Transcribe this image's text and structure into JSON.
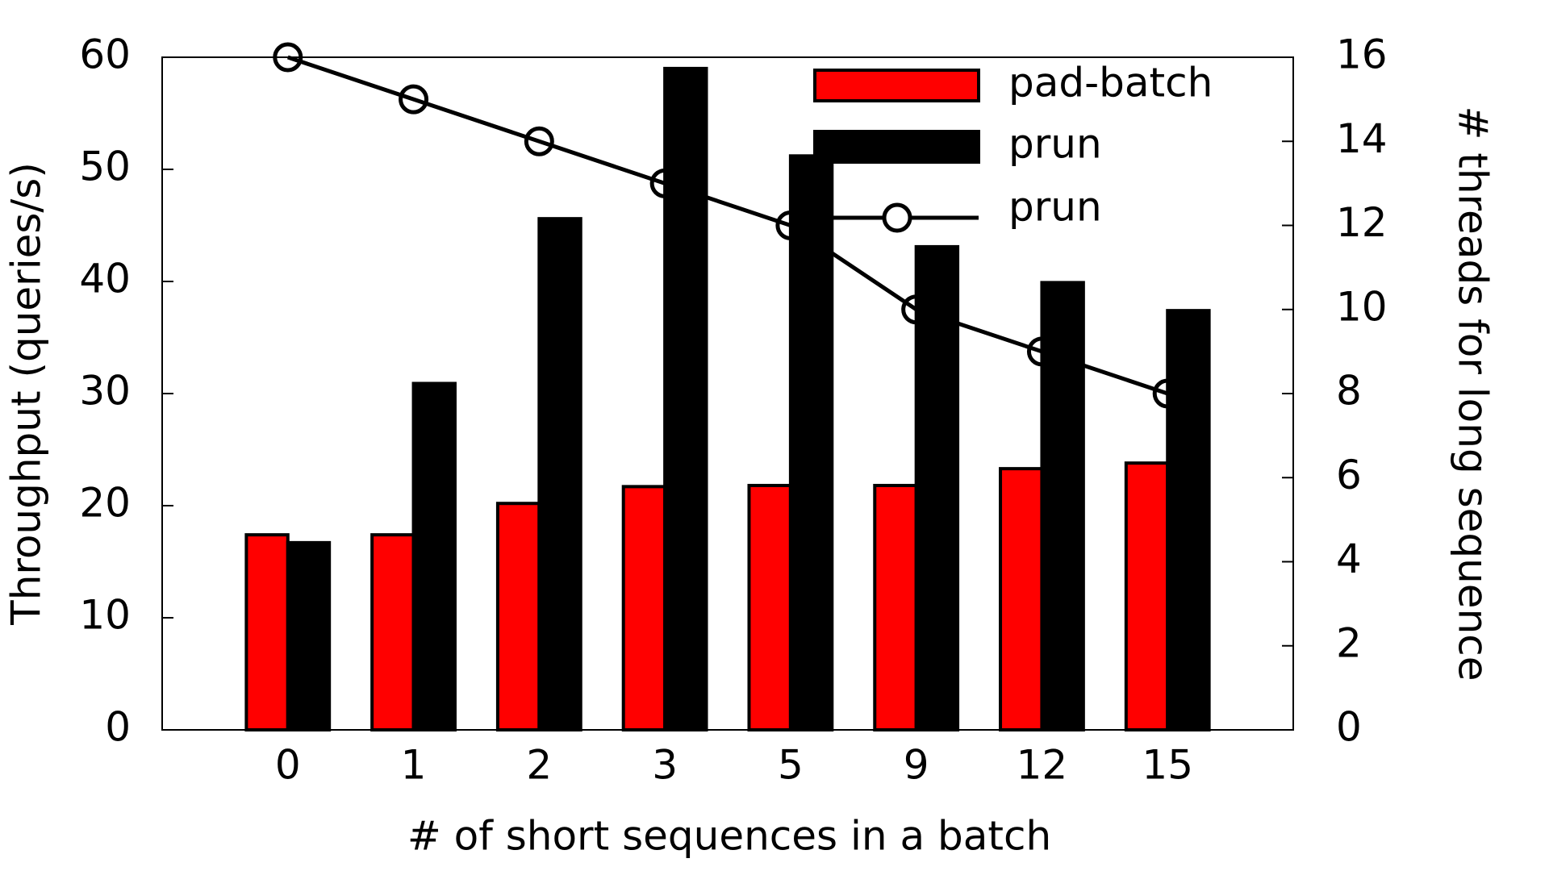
{
  "chart_data": {
    "type": "bar",
    "xlabel": "# of short sequences in a batch",
    "ylabel": "Throughput (queries/s)",
    "y2label": "# threads for long sequence",
    "categories": [
      "0",
      "1",
      "2",
      "3",
      "5",
      "9",
      "12",
      "15"
    ],
    "series": [
      {
        "name": "pad-batch",
        "type": "bar",
        "color": "#ff0000",
        "values": [
          17.4,
          17.4,
          20.2,
          21.7,
          21.8,
          21.8,
          23.3,
          23.8
        ]
      },
      {
        "name": "prun",
        "type": "bar",
        "color": "#000000",
        "values": [
          16.7,
          30.9,
          45.6,
          59.0,
          51.2,
          43.1,
          39.9,
          37.4
        ]
      },
      {
        "name": "prun",
        "type": "line",
        "axis": "y2",
        "color": "#000000",
        "values": [
          16,
          15,
          14,
          13,
          12,
          10,
          9,
          8
        ]
      }
    ],
    "ylim": [
      0,
      60
    ],
    "yticks": [
      0,
      10,
      20,
      30,
      40,
      50,
      60
    ],
    "y2lim": [
      0,
      16
    ],
    "y2ticks": [
      0,
      2,
      4,
      6,
      8,
      10,
      12,
      14,
      16
    ],
    "legend": "top-right"
  }
}
